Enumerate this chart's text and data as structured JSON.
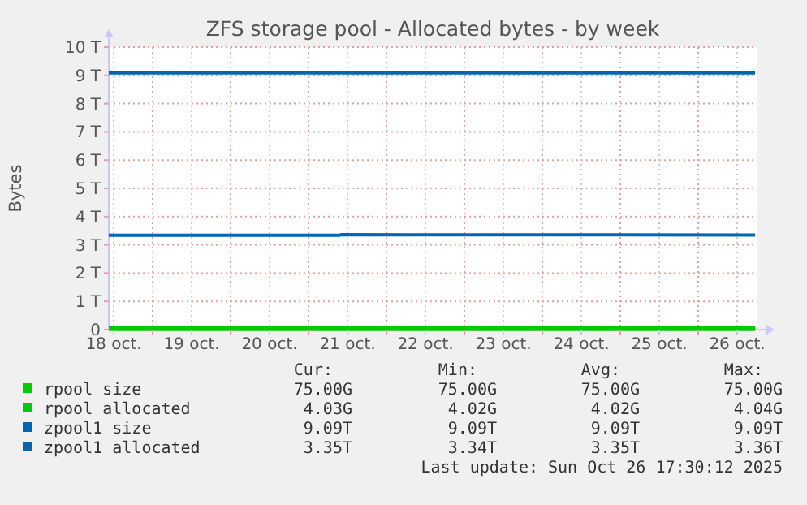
{
  "chart_data": {
    "type": "line",
    "title": "ZFS storage pool - Allocated bytes - by week",
    "ylabel": "Bytes",
    "xlim": [
      "2025-10-18T10:30",
      "2025-10-26T18:00"
    ],
    "xticks": [
      {
        "value": "2025-10-18T12:00",
        "label": "18 oct."
      },
      {
        "value": "2025-10-19T00:00",
        "label": null
      },
      {
        "value": "2025-10-19T12:00",
        "label": "19 oct."
      },
      {
        "value": "2025-10-20T00:00",
        "label": null
      },
      {
        "value": "2025-10-20T12:00",
        "label": "20 oct."
      },
      {
        "value": "2025-10-21T00:00",
        "label": null
      },
      {
        "value": "2025-10-21T12:00",
        "label": "21 oct."
      },
      {
        "value": "2025-10-22T00:00",
        "label": null
      },
      {
        "value": "2025-10-22T12:00",
        "label": "22 oct."
      },
      {
        "value": "2025-10-23T00:00",
        "label": null
      },
      {
        "value": "2025-10-23T12:00",
        "label": "23 oct."
      },
      {
        "value": "2025-10-24T00:00",
        "label": null
      },
      {
        "value": "2025-10-24T12:00",
        "label": "24 oct."
      },
      {
        "value": "2025-10-25T00:00",
        "label": null
      },
      {
        "value": "2025-10-25T12:00",
        "label": "25 oct."
      },
      {
        "value": "2025-10-26T00:00",
        "label": null
      },
      {
        "value": "2025-10-26T12:00",
        "label": "26 oct."
      }
    ],
    "ylim": [
      0,
      10
    ],
    "yticks": [
      0,
      {
        "value": 1,
        "label": "1 T"
      },
      {
        "value": 2,
        "label": "2 T"
      },
      {
        "value": 3,
        "label": "3 T"
      },
      {
        "value": 4,
        "label": "4 T"
      },
      {
        "value": 5,
        "label": "5 T"
      },
      {
        "value": 6,
        "label": "6 T"
      },
      {
        "value": 7,
        "label": "7 T"
      },
      {
        "value": 8,
        "label": "8 T"
      },
      {
        "value": 9,
        "label": "9 T"
      },
      {
        "value": 10,
        "label": "10 T"
      }
    ],
    "grid": true,
    "legend": "bottom",
    "marker": "none",
    "series": [
      {
        "name": "rpool size",
        "color": "#00cc00",
        "x": [
          "2025-10-18T10:30",
          "2025-10-26T17:30"
        ],
        "values": [
          0.075,
          0.075
        ]
      },
      {
        "name": "rpool allocated",
        "color": "#00cc00",
        "x": [
          "2025-10-18T10:30",
          "2025-10-26T17:30"
        ],
        "values": [
          0.004,
          0.004
        ]
      },
      {
        "name": "zpool1 size",
        "color": "#0066b3",
        "x": [
          "2025-10-18T10:30",
          "2025-10-26T17:30"
        ],
        "values": [
          9.09,
          9.09
        ]
      },
      {
        "name": "zpool1 allocated",
        "color": "#0066b3",
        "x": [
          "2025-10-18T10:30",
          "2025-10-21T09:30",
          "2025-10-21T10:00",
          "2025-10-26T17:30"
        ],
        "values": [
          3.34,
          3.34,
          3.36,
          3.35
        ]
      }
    ],
    "annotations": [
      "Cur:",
      "Min:",
      "Avg:",
      "Max:",
      "75.00G",
      "75.00G",
      "75.00G",
      "75.00G",
      "4.03G",
      "4.02G",
      "4.02G",
      "4.04G",
      "9.09T",
      "9.09T",
      "9.09T",
      "9.09T",
      "3.35T",
      "3.34T",
      "3.35T",
      "3.36T",
      "Last update: Sun Oct 26 17:30:12 2025"
    ]
  }
}
